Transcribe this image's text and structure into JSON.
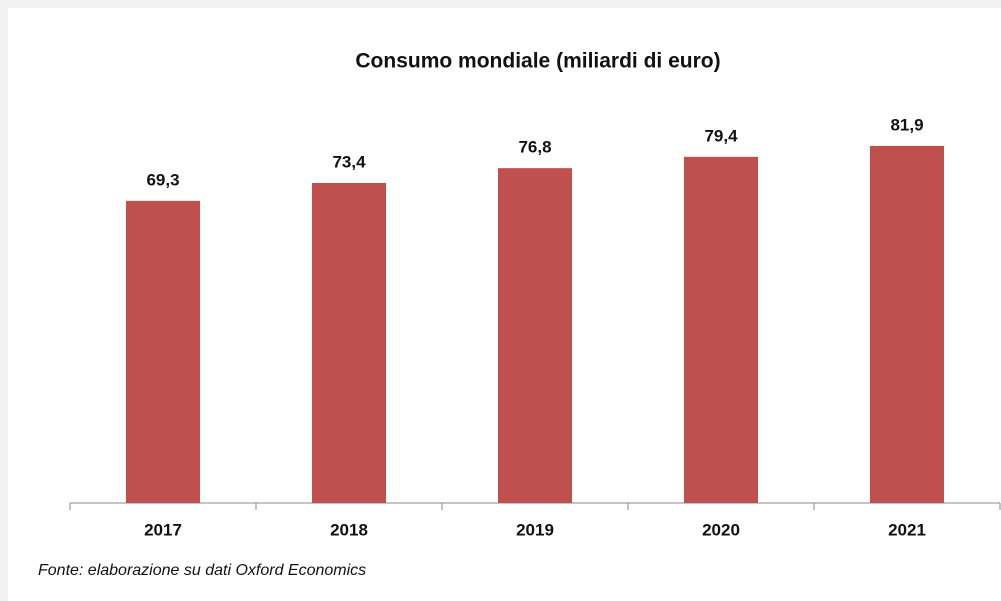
{
  "chart_data": {
    "type": "bar",
    "title": "Consumo mondiale (miliardi di euro)",
    "categories": [
      "2017",
      "2018",
      "2019",
      "2020",
      "2021"
    ],
    "values": [
      69.3,
      73.4,
      76.8,
      79.4,
      81.9
    ],
    "value_labels": [
      "69,3",
      "73,4",
      "76,8",
      "79,4",
      "81,9"
    ],
    "color": "#c0504d",
    "ylim": [
      0,
      100
    ],
    "source": "Fonte: elaborazione su dati Oxford Economics"
  }
}
